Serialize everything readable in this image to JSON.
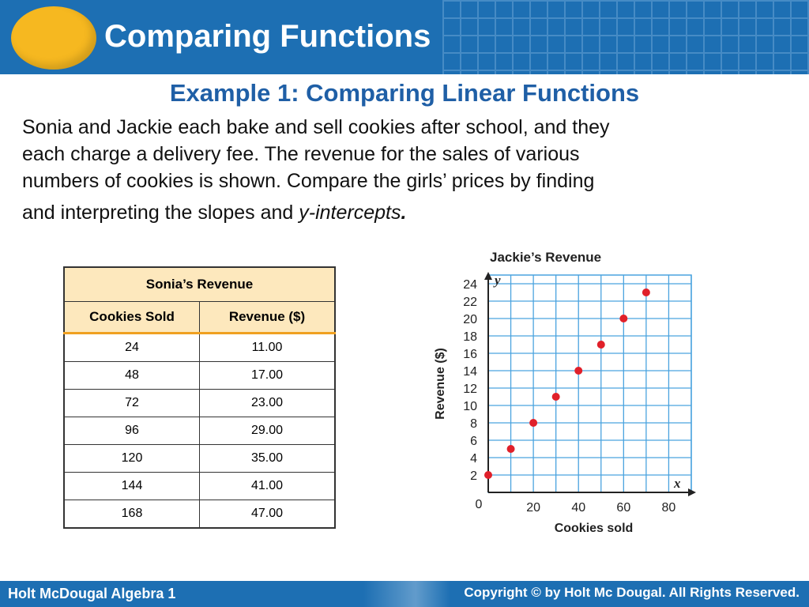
{
  "header": {
    "title": "Comparing Functions"
  },
  "example_title": "Example 1: Comparing Linear Functions",
  "problem": {
    "line1": "Sonia and Jackie each bake and sell cookies after school, and they",
    "line2": "each charge a delivery fee. The revenue for the sales of various",
    "line3": "numbers of cookies is shown. Compare the girls’ prices by finding",
    "line4_start": "and interpreting the slopes and ",
    "line4_italic": "y-intercepts",
    "line4_end": "."
  },
  "table": {
    "title": "Sonia’s Revenue",
    "headers": [
      "Cookies Sold",
      "Revenue ($)"
    ],
    "rows": [
      [
        "24",
        "11.00"
      ],
      [
        "48",
        "17.00"
      ],
      [
        "72",
        "23.00"
      ],
      [
        "96",
        "29.00"
      ],
      [
        "120",
        "35.00"
      ],
      [
        "144",
        "41.00"
      ],
      [
        "168",
        "47.00"
      ]
    ]
  },
  "chart_data": {
    "type": "scatter",
    "title": "Jackie’s Revenue",
    "xlabel": "Cookies sold",
    "ylabel": "Revenue ($)",
    "x_axis_letter": "x",
    "y_axis_letter": "y",
    "origin_label": "0",
    "xlim": [
      0,
      90
    ],
    "ylim": [
      0,
      25
    ],
    "x_ticks": [
      20,
      40,
      60,
      80
    ],
    "y_ticks": [
      2,
      4,
      6,
      8,
      10,
      12,
      14,
      16,
      18,
      20,
      22,
      24
    ],
    "grid": true,
    "point_color": "#e0202a",
    "points": [
      {
        "x": 0,
        "y": 2
      },
      {
        "x": 10,
        "y": 5
      },
      {
        "x": 20,
        "y": 8
      },
      {
        "x": 30,
        "y": 11
      },
      {
        "x": 40,
        "y": 14
      },
      {
        "x": 50,
        "y": 17
      },
      {
        "x": 60,
        "y": 20
      },
      {
        "x": 70,
        "y": 23
      }
    ]
  },
  "footer": {
    "left": "Holt McDougal Algebra 1",
    "right": "Copyright © by Holt Mc Dougal. All Rights Reserved."
  }
}
